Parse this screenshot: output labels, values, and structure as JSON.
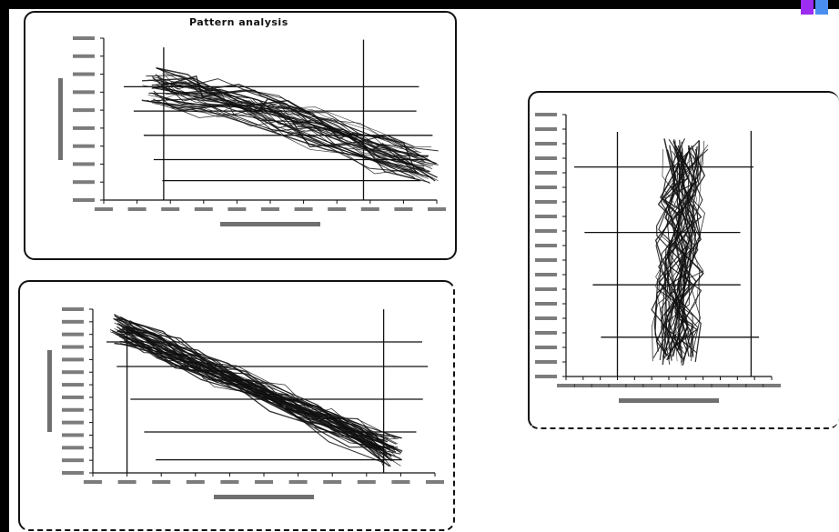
{
  "colors": {
    "background": "#ffffff",
    "ink": "#111111",
    "frame": "#000000",
    "corner_left": "#9b2cf0",
    "corner_right": "#4a8ff0"
  },
  "panels": {
    "top_title": "Pattern analysis"
  },
  "chart_data": [
    {
      "type": "line",
      "title": "Pattern analysis",
      "xlabel": "",
      "ylabel": "",
      "grid": true,
      "legend": "none",
      "series": []
    },
    {
      "type": "line",
      "title": "",
      "xlabel": "",
      "ylabel": "",
      "grid": true,
      "legend": "none",
      "series": []
    },
    {
      "type": "line",
      "title": "",
      "xlabel": "",
      "ylabel": "",
      "grid": true,
      "legend": "none",
      "series": []
    }
  ]
}
